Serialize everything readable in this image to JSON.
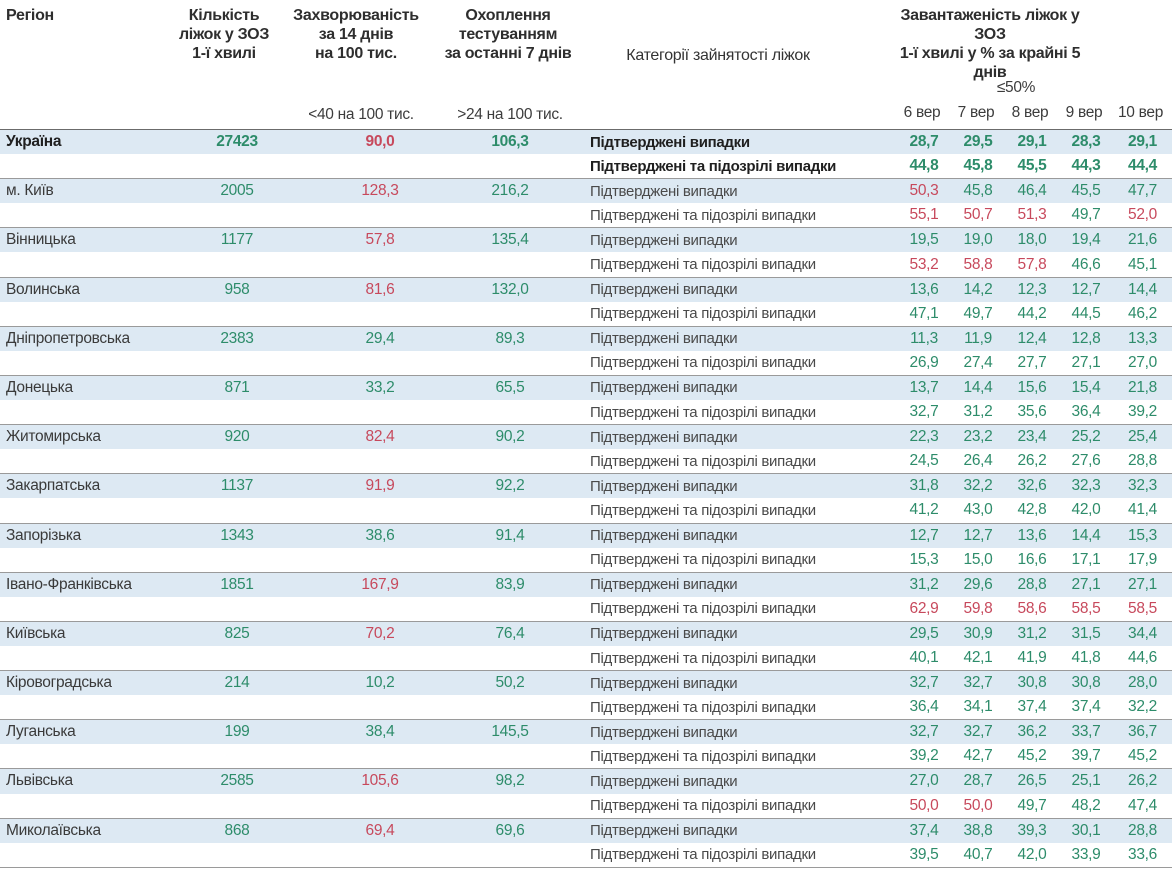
{
  "header": {
    "region": "Регіон",
    "beds": "Кількість\nліжок у ЗОЗ\n1-ї хвилі",
    "incidence": "Захворюваність\nза 14 днів\nна 100 тис.",
    "testing": "Охоплення\nтестуванням\nза останні 7 днів",
    "categories": "Категорії зайнятості ліжок",
    "occupancy": "Завантаженість ліжок у ЗОЗ\n1-ї хвилі у % за крайні 5 днів",
    "incidence_threshold": "<40 на 100 тис.",
    "testing_threshold": ">24 на 100 тис.",
    "occupancy_threshold": "≤50%"
  },
  "dates": [
    "6 вер",
    "7 вер",
    "8 вер",
    "9 вер",
    "10 вер"
  ],
  "category_labels": {
    "confirmed": "Підтверджені випадки",
    "confirmed_suspected": "Підтверджені та підозрілі випадки"
  },
  "colors": {
    "green": "#2d8c6a",
    "red": "#c7495c",
    "row_blue": "#dde9f3"
  },
  "rules": {
    "incidence_red_min": 40,
    "testing_green_min": 24,
    "occupancy_red_min": 50
  },
  "chart_data": {
    "type": "table",
    "columns": [
      "Регіон",
      "Кількість ліжок у ЗОЗ 1-ї хвилі",
      "Захворюваність за 14 днів на 100 тис.",
      "Охоплення тестуванням за останні 7 днів",
      "Категорії зайнятості ліжок",
      "6 вер",
      "7 вер",
      "8 вер",
      "9 вер",
      "10 вер"
    ],
    "rows": [
      {
        "name": "Україна",
        "bold": true,
        "beds": "27423",
        "incidence": "90,0",
        "testing": "106,3",
        "confirmed": [
          "28,7",
          "29,5",
          "29,1",
          "28,3",
          "29,1"
        ],
        "confirmed_suspected": [
          "44,8",
          "45,8",
          "45,5",
          "44,3",
          "44,4"
        ]
      },
      {
        "name": "м. Київ",
        "bold": false,
        "beds": "2005",
        "incidence": "128,3",
        "testing": "216,2",
        "confirmed": [
          "50,3",
          "45,8",
          "46,4",
          "45,5",
          "47,7"
        ],
        "confirmed_suspected": [
          "55,1",
          "50,7",
          "51,3",
          "49,7",
          "52,0"
        ]
      },
      {
        "name": "Вінницька",
        "bold": false,
        "beds": "1177",
        "incidence": "57,8",
        "testing": "135,4",
        "confirmed": [
          "19,5",
          "19,0",
          "18,0",
          "19,4",
          "21,6"
        ],
        "confirmed_suspected": [
          "53,2",
          "58,8",
          "57,8",
          "46,6",
          "45,1"
        ]
      },
      {
        "name": "Волинська",
        "bold": false,
        "beds": "958",
        "incidence": "81,6",
        "testing": "132,0",
        "confirmed": [
          "13,6",
          "14,2",
          "12,3",
          "12,7",
          "14,4"
        ],
        "confirmed_suspected": [
          "47,1",
          "49,7",
          "44,2",
          "44,5",
          "46,2"
        ]
      },
      {
        "name": "Дніпропетровська",
        "bold": false,
        "beds": "2383",
        "incidence": "29,4",
        "testing": "89,3",
        "confirmed": [
          "11,3",
          "11,9",
          "12,4",
          "12,8",
          "13,3"
        ],
        "confirmed_suspected": [
          "26,9",
          "27,4",
          "27,7",
          "27,1",
          "27,0"
        ]
      },
      {
        "name": "Донецька",
        "bold": false,
        "beds": "871",
        "incidence": "33,2",
        "testing": "65,5",
        "confirmed": [
          "13,7",
          "14,4",
          "15,6",
          "15,4",
          "21,8"
        ],
        "confirmed_suspected": [
          "32,7",
          "31,2",
          "35,6",
          "36,4",
          "39,2"
        ]
      },
      {
        "name": "Житомирська",
        "bold": false,
        "beds": "920",
        "incidence": "82,4",
        "testing": "90,2",
        "confirmed": [
          "22,3",
          "23,2",
          "23,4",
          "25,2",
          "25,4"
        ],
        "confirmed_suspected": [
          "24,5",
          "26,4",
          "26,2",
          "27,6",
          "28,8"
        ]
      },
      {
        "name": "Закарпатська",
        "bold": false,
        "beds": "1137",
        "incidence": "91,9",
        "testing": "92,2",
        "confirmed": [
          "31,8",
          "32,2",
          "32,6",
          "32,3",
          "32,3"
        ],
        "confirmed_suspected": [
          "41,2",
          "43,0",
          "42,8",
          "42,0",
          "41,4"
        ]
      },
      {
        "name": "Запорізька",
        "bold": false,
        "beds": "1343",
        "incidence": "38,6",
        "testing": "91,4",
        "confirmed": [
          "12,7",
          "12,7",
          "13,6",
          "14,4",
          "15,3"
        ],
        "confirmed_suspected": [
          "15,3",
          "15,0",
          "16,6",
          "17,1",
          "17,9"
        ]
      },
      {
        "name": "Івано-Франківська",
        "bold": false,
        "beds": "1851",
        "incidence": "167,9",
        "testing": "83,9",
        "confirmed": [
          "31,2",
          "29,6",
          "28,8",
          "27,1",
          "27,1"
        ],
        "confirmed_suspected": [
          "62,9",
          "59,8",
          "58,6",
          "58,5",
          "58,5"
        ]
      },
      {
        "name": "Київська",
        "bold": false,
        "beds": "825",
        "incidence": "70,2",
        "testing": "76,4",
        "confirmed": [
          "29,5",
          "30,9",
          "31,2",
          "31,5",
          "34,4"
        ],
        "confirmed_suspected": [
          "40,1",
          "42,1",
          "41,9",
          "41,8",
          "44,6"
        ]
      },
      {
        "name": "Кіровоградська",
        "bold": false,
        "beds": "214",
        "incidence": "10,2",
        "testing": "50,2",
        "confirmed": [
          "32,7",
          "32,7",
          "30,8",
          "30,8",
          "28,0"
        ],
        "confirmed_suspected": [
          "36,4",
          "34,1",
          "37,4",
          "37,4",
          "32,2"
        ]
      },
      {
        "name": "Луганська",
        "bold": false,
        "beds": "199",
        "incidence": "38,4",
        "testing": "145,5",
        "confirmed": [
          "32,7",
          "32,7",
          "36,2",
          "33,7",
          "36,7"
        ],
        "confirmed_suspected": [
          "39,2",
          "42,7",
          "45,2",
          "39,7",
          "45,2"
        ]
      },
      {
        "name": "Львівська",
        "bold": false,
        "beds": "2585",
        "incidence": "105,6",
        "testing": "98,2",
        "confirmed": [
          "27,0",
          "28,7",
          "26,5",
          "25,1",
          "26,2"
        ],
        "confirmed_suspected": [
          "50,0",
          "50,0",
          "49,7",
          "48,2",
          "47,4"
        ]
      },
      {
        "name": "Миколаївська",
        "bold": false,
        "beds": "868",
        "incidence": "69,4",
        "testing": "69,6",
        "confirmed": [
          "37,4",
          "38,8",
          "39,3",
          "30,1",
          "28,8"
        ],
        "confirmed_suspected": [
          "39,5",
          "40,7",
          "42,0",
          "33,9",
          "33,6"
        ]
      }
    ]
  }
}
